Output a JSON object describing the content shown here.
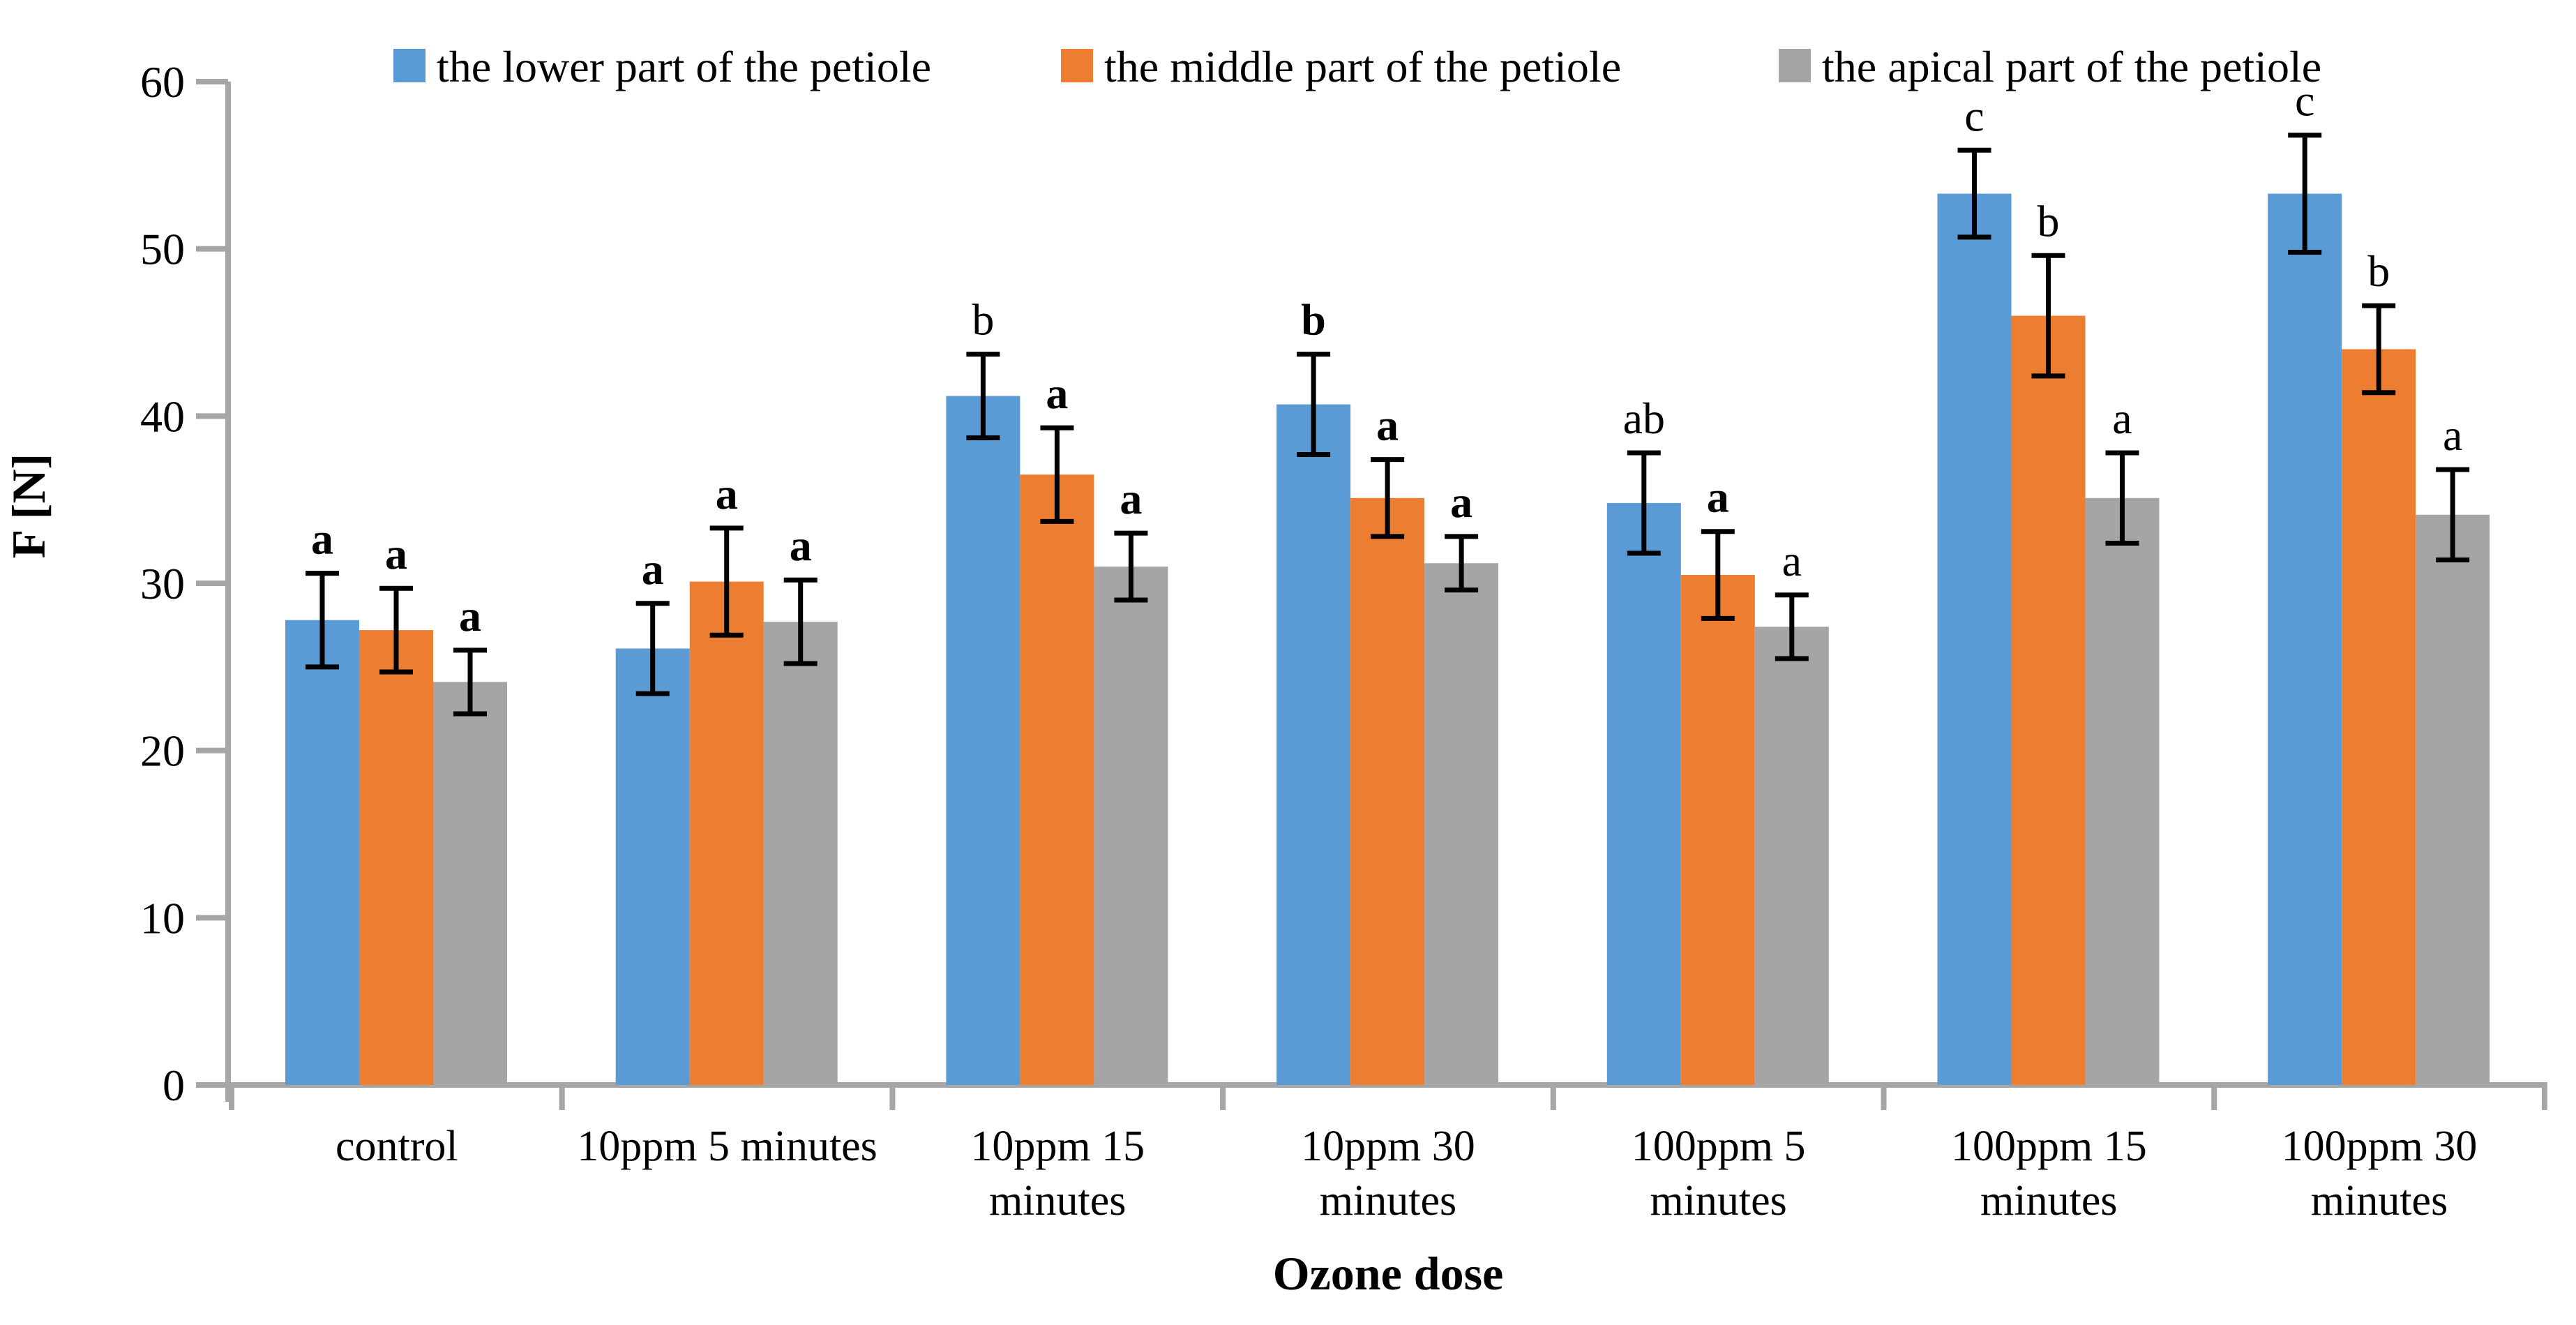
{
  "chart_data": {
    "type": "bar",
    "title": "",
    "xlabel": "Ozone dose",
    "ylabel": "F [N]",
    "ylim": [
      0,
      60
    ],
    "yticks": [
      0,
      10,
      20,
      30,
      40,
      50,
      60
    ],
    "grid": false,
    "legend_position": "top",
    "error_bars": true,
    "categories": [
      "control",
      "10ppm 5 minutes",
      "10ppm 15 minutes",
      "10ppm 30 minutes",
      "100ppm 5 minutes",
      "100ppm 15 minutes",
      "100ppm 30 minutes"
    ],
    "category_lines": [
      [
        "control"
      ],
      [
        "10ppm 5 minutes"
      ],
      [
        "10ppm 15",
        "minutes"
      ],
      [
        "10ppm 30",
        "minutes"
      ],
      [
        "100ppm 5",
        "minutes"
      ],
      [
        "100ppm 15",
        "minutes"
      ],
      [
        "100ppm 30",
        "minutes"
      ]
    ],
    "series": [
      {
        "name": "the lower part of the petiole",
        "color": "#5B9BD5",
        "letter_color": "#5B9BD5",
        "values": [
          27.8,
          26.1,
          41.2,
          40.7,
          34.8,
          53.3,
          53.3
        ],
        "errors": [
          2.8,
          2.7,
          2.5,
          3.0,
          3.0,
          2.6,
          3.5
        ],
        "letters": [
          "a",
          "a",
          "b",
          "b",
          "ab",
          "c",
          "c"
        ],
        "letters_bold": [
          true,
          true,
          false,
          true,
          false,
          false,
          false
        ]
      },
      {
        "name": "the middle part of the petiole",
        "color": "#ED7D31",
        "letter_color": "#ED7D31",
        "values": [
          27.2,
          30.1,
          36.5,
          35.1,
          30.5,
          46.0,
          44.0
        ],
        "errors": [
          2.5,
          3.2,
          2.8,
          2.3,
          2.6,
          3.6,
          2.6
        ],
        "letters": [
          "a",
          "a",
          "a",
          "a",
          "a",
          "b",
          "b"
        ],
        "letters_bold": [
          true,
          true,
          true,
          true,
          true,
          false,
          false
        ]
      },
      {
        "name": "the apical part of the petiole",
        "color": "#A5A5A5",
        "letter_color": "#9B9B9B",
        "values": [
          24.1,
          27.7,
          31.0,
          31.2,
          27.4,
          35.1,
          34.1
        ],
        "errors": [
          1.9,
          2.5,
          2.0,
          1.6,
          1.9,
          2.7,
          2.7
        ],
        "letters": [
          "a",
          "a",
          "a",
          "a",
          "a",
          "a",
          "a"
        ],
        "letters_bold": [
          true,
          true,
          true,
          true,
          false,
          false,
          false
        ]
      }
    ],
    "colors": {
      "axis": "#A6A6A6",
      "error_bar": "#000000",
      "text": "#000000",
      "background": "#FFFFFF"
    }
  }
}
